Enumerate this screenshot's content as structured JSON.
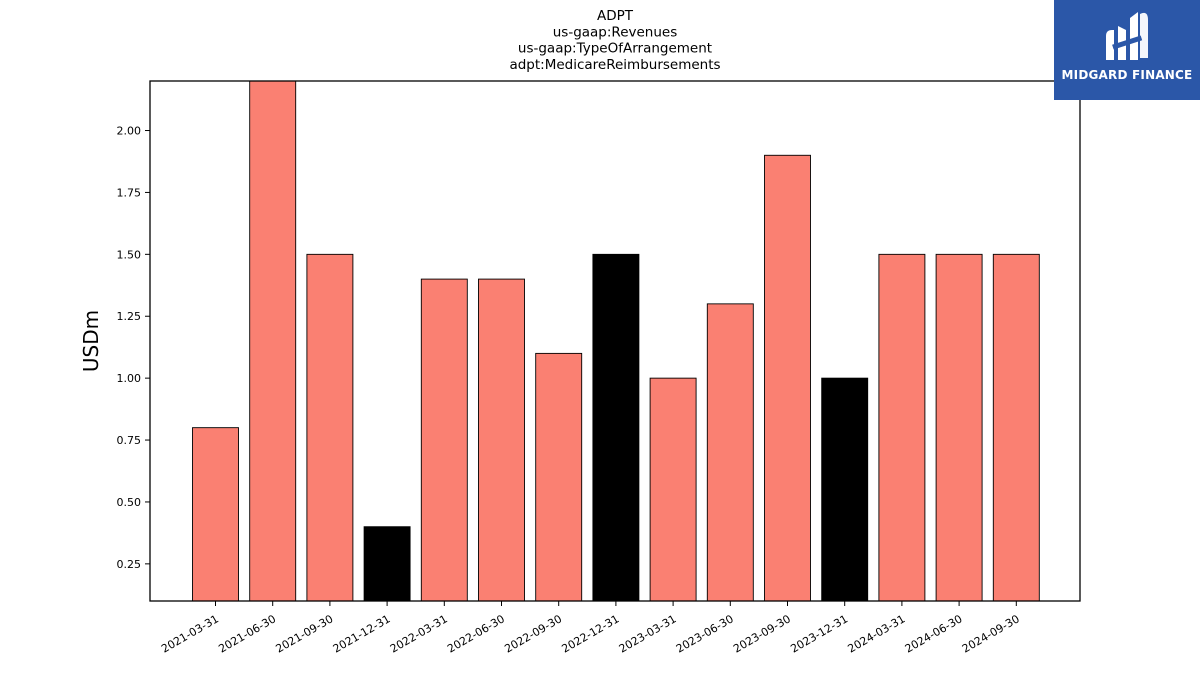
{
  "chart_data": {
    "type": "bar",
    "title_lines": [
      "ADPT",
      "us-gaap:Revenues",
      "us-gaap:TypeOfArrangement",
      "adpt:MedicareReimbursements"
    ],
    "xlabel": "",
    "ylabel": "USDm",
    "ylim": [
      0.1,
      2.2
    ],
    "yticks": [
      "0.25",
      "0.50",
      "0.75",
      "1.00",
      "1.25",
      "1.50",
      "1.75",
      "2.00"
    ],
    "categories": [
      "2021-03-31",
      "2021-06-30",
      "2021-09-30",
      "2021-12-31",
      "2022-03-31",
      "2022-06-30",
      "2022-09-30",
      "2022-12-31",
      "2023-03-31",
      "2023-06-30",
      "2023-09-30",
      "2023-12-31",
      "2024-03-31",
      "2024-06-30",
      "2024-09-30"
    ],
    "values": [
      0.8,
      2.2,
      1.5,
      0.4,
      1.4,
      1.4,
      1.1,
      1.5,
      1.0,
      1.3,
      1.9,
      1.0,
      1.5,
      1.5,
      1.5
    ],
    "bar_colors": [
      "#fa8072",
      "#fa8072",
      "#fa8072",
      "#000000",
      "#fa8072",
      "#fa8072",
      "#fa8072",
      "#000000",
      "#fa8072",
      "#fa8072",
      "#fa8072",
      "#000000",
      "#fa8072",
      "#fa8072",
      "#fa8072"
    ],
    "grid": false,
    "legend": "none"
  },
  "logo": {
    "text": "MIDGARD FINANCE",
    "icon": "midgard-logo-icon"
  }
}
